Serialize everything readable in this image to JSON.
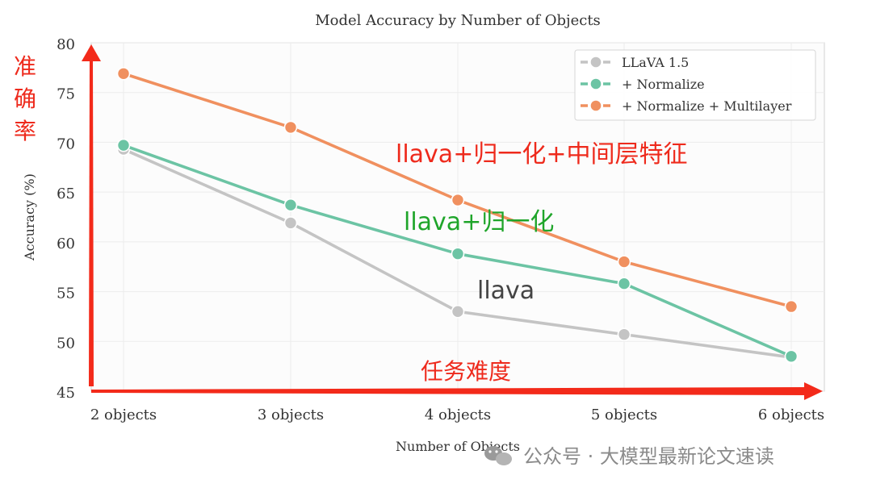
{
  "chart_data": {
    "type": "line",
    "title": "Model Accuracy by Number of Objects",
    "xlabel": "Number of Objects",
    "ylabel": "Accuracy (%)",
    "categories": [
      "2 objects",
      "3 objects",
      "4 objects",
      "5 objects",
      "6 objects"
    ],
    "ylim": [
      45,
      80
    ],
    "yticks": [
      45,
      50,
      55,
      60,
      65,
      70,
      75,
      80
    ],
    "grid": true,
    "legend_position": "top-right",
    "series": [
      {
        "name": "LLaVA 1.5",
        "color": "#c4c4c4",
        "values": [
          69.3,
          61.9,
          53.0,
          50.7,
          48.4
        ]
      },
      {
        "name": "+ Normalize",
        "color": "#6cc4a4",
        "values": [
          69.7,
          63.7,
          58.8,
          55.8,
          48.5
        ]
      },
      {
        "name": "+ Normalize + Multilayer",
        "color": "#f0905f",
        "values": [
          76.9,
          71.5,
          64.2,
          58.0,
          53.5
        ]
      }
    ],
    "annotations": {
      "y_arrow_label": "准确率",
      "x_arrow_label": "任务难度",
      "series_labels": [
        {
          "text": "llava+归一化+中间层特征",
          "color": "#ee2a1c"
        },
        {
          "text": "llava+归一化",
          "color": "#1fa52a"
        },
        {
          "text": "llava",
          "color": "#444444"
        }
      ]
    },
    "arrow_color": "#f32a1a"
  },
  "watermark": "公众号 · 大模型最新论文速读"
}
